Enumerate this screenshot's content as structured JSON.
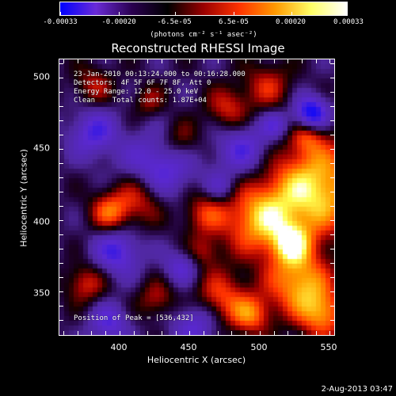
{
  "colorbar": {
    "labels": [
      "-0.00033",
      "-0.00020",
      "-6.5e-05",
      "6.5e-05",
      "0.00020",
      "0.00033"
    ],
    "unit": "(photons cm⁻² s⁻¹ asec⁻²)",
    "colors": [
      "#0000ff",
      "#6a2bd6",
      "#2a0050",
      "#000000",
      "#9a0000",
      "#ff3300",
      "#ff9900",
      "#ffff66",
      "#ffffff"
    ]
  },
  "title": "Reconstructed RHESSI Image",
  "info": {
    "time": "23-Jan-2010 00:13:24.000 to 00:16:28.000",
    "detectors": "Detectors: 4F 5F 6F 7F 8F, Att 0",
    "energy": "Energy Range: 12.0 - 25.0 keV",
    "method": "Clean    Total counts: 1.87E+04",
    "peak": "Position of Peak = [536,432]"
  },
  "axes": {
    "xlabel": "Heliocentric X (arcsec)",
    "ylabel": "Heliocentric Y (arcsec)",
    "xticks": [
      "400",
      "450",
      "500",
      "550"
    ],
    "yticks": [
      "500",
      "450",
      "400",
      "350"
    ]
  },
  "footer": {
    "date": "2-Aug-2013 03:47"
  }
}
